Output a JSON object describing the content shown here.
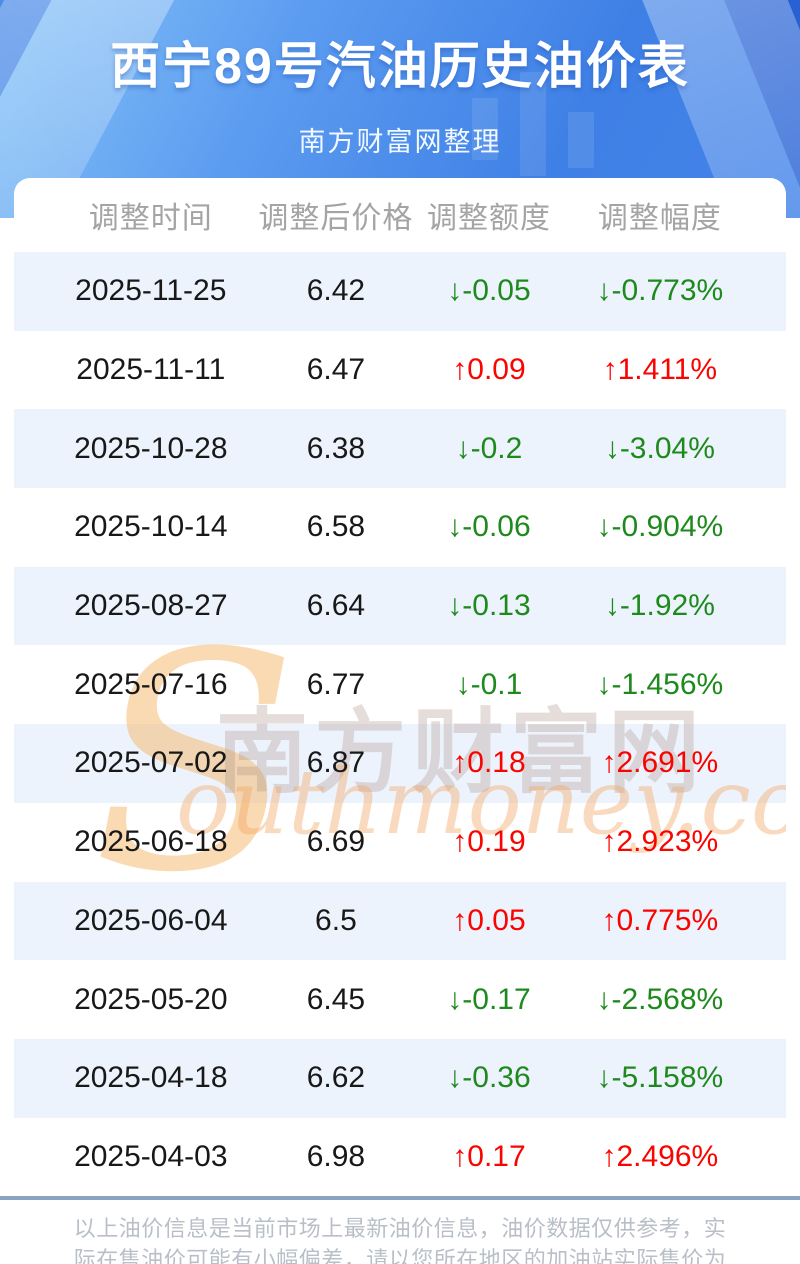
{
  "header": {
    "title": "西宁89号汽油历史油价表",
    "subtitle": "南方财富网整理"
  },
  "table": {
    "columns": [
      "调整时间",
      "调整后价格",
      "调整额度",
      "调整幅度"
    ],
    "up_arrow": "↑",
    "down_arrow": "↓",
    "rows": [
      {
        "date": "2025-11-25",
        "price": "6.42",
        "change": "-0.05",
        "rate": "-0.773%",
        "direction": "down"
      },
      {
        "date": "2025-11-11",
        "price": "6.47",
        "change": "0.09",
        "rate": "1.411%",
        "direction": "up"
      },
      {
        "date": "2025-10-28",
        "price": "6.38",
        "change": "-0.2",
        "rate": "-3.04%",
        "direction": "down"
      },
      {
        "date": "2025-10-14",
        "price": "6.58",
        "change": "-0.06",
        "rate": "-0.904%",
        "direction": "down"
      },
      {
        "date": "2025-08-27",
        "price": "6.64",
        "change": "-0.13",
        "rate": "-1.92%",
        "direction": "down"
      },
      {
        "date": "2025-07-16",
        "price": "6.77",
        "change": "-0.1",
        "rate": "-1.456%",
        "direction": "down"
      },
      {
        "date": "2025-07-02",
        "price": "6.87",
        "change": "0.18",
        "rate": "2.691%",
        "direction": "up"
      },
      {
        "date": "2025-06-18",
        "price": "6.69",
        "change": "0.19",
        "rate": "2.923%",
        "direction": "up"
      },
      {
        "date": "2025-06-04",
        "price": "6.5",
        "change": "0.05",
        "rate": "0.775%",
        "direction": "up"
      },
      {
        "date": "2025-05-20",
        "price": "6.45",
        "change": "-0.17",
        "rate": "-2.568%",
        "direction": "down"
      },
      {
        "date": "2025-04-18",
        "price": "6.62",
        "change": "-0.36",
        "rate": "-5.158%",
        "direction": "down"
      },
      {
        "date": "2025-04-03",
        "price": "6.98",
        "change": "0.17",
        "rate": "2.496%",
        "direction": "up"
      }
    ]
  },
  "watermark": {
    "swoosh": "S",
    "cn": "南方财富网",
    "en": "outhmoney.com"
  },
  "footer": {
    "disclaimer": "以上油价信息是当前市场上最新油价信息，油价数据仅供参考，实际在售油价可能有小幅偏差，请以您所在地区的加油站实际售价为准。"
  },
  "colors": {
    "up": "#fa0400",
    "down": "#1e8a1e",
    "stripe": "#edf3fc",
    "header_text": "#a4a4a4",
    "divider": "#8aa3c2",
    "footer_text": "#b9bfc7"
  }
}
